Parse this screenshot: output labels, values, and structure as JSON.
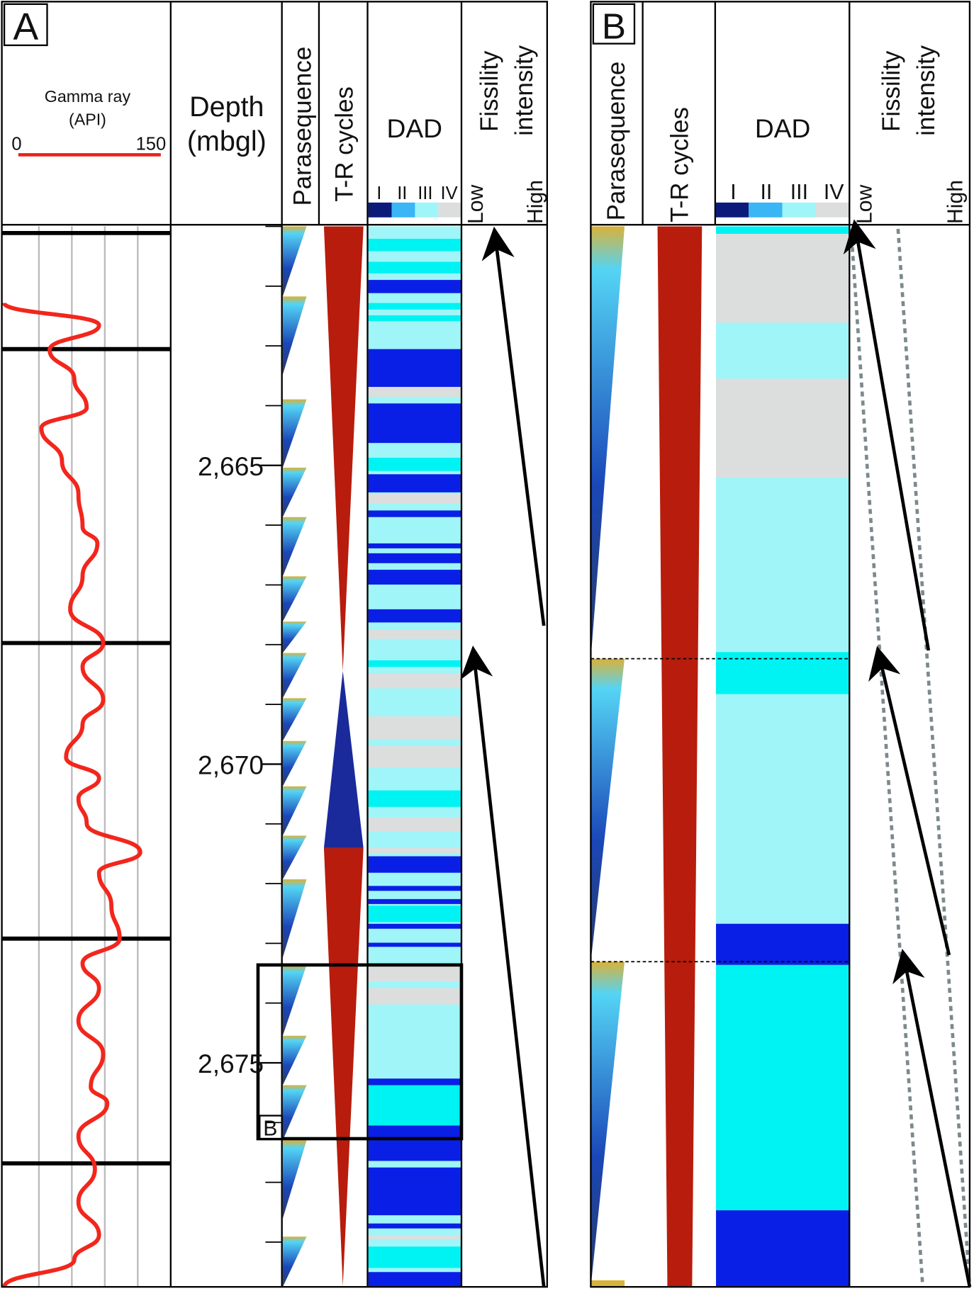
{
  "panel_a": {
    "label": "A",
    "gamma_ray": {
      "title": "Gamma ray",
      "unit": "(API)",
      "scale_min": 0,
      "scale_max": 150
    },
    "depth": {
      "title": "Depth",
      "unit": "(mbgl)",
      "ylim": [
        2661,
        2678.75
      ],
      "ticks": [
        {
          "value": 2665,
          "label": "2,665"
        },
        {
          "value": 2670,
          "label": "2,670"
        },
        {
          "value": 2675,
          "label": "2,675"
        }
      ],
      "minor_ticks": [
        2661,
        2662,
        2663,
        2664,
        2665,
        2666,
        2667,
        2668,
        2669,
        2670,
        2671,
        2672,
        2673,
        2674,
        2675,
        2676,
        2677,
        2678
      ]
    },
    "columns": [
      "Parasequence",
      "T-R cycles",
      "DAD"
    ],
    "dad_classes": [
      "I",
      "II",
      "III",
      "IV"
    ],
    "fissility": {
      "title_lines": [
        "Fissility",
        "intensity"
      ],
      "low": "Low",
      "high": "High"
    },
    "inset_label": "B"
  },
  "panel_b": {
    "label": "B",
    "columns": [
      "Parasequence",
      "T-R cycles",
      "DAD"
    ],
    "dad_classes": [
      "I",
      "II",
      "III",
      "IV"
    ],
    "fissility": {
      "title_lines": [
        "Fissility",
        "intensity"
      ],
      "low": "Low",
      "high": "High"
    }
  }
}
